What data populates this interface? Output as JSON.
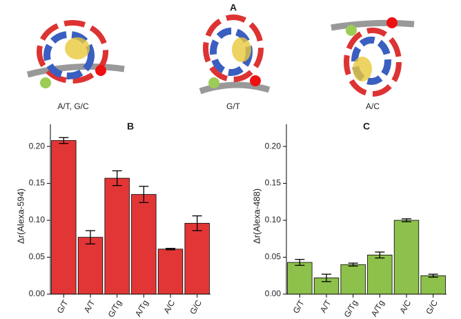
{
  "figure": {
    "panel_label": "A",
    "structures": [
      "A/T, G/C",
      "G/T",
      "A/C"
    ]
  },
  "chart_data": [
    {
      "type": "bar",
      "title": "B",
      "ylabel": "Δr(Alexa-594)",
      "categories": [
        "G/T",
        "A/T",
        "G/Tg",
        "A/Tg",
        "A/C",
        "G/C"
      ],
      "values": [
        0.208,
        0.077,
        0.157,
        0.135,
        0.061,
        0.096
      ],
      "errors": [
        0.004,
        0.009,
        0.01,
        0.011,
        0.001,
        0.01
      ],
      "color": "#e23636",
      "ylim": [
        0,
        0.23
      ],
      "yticks": [
        {
          "value": 0,
          "label": "0.00"
        },
        {
          "value": 0.05,
          "label": "0.05"
        },
        {
          "value": 0.1,
          "label": "0.10"
        },
        {
          "value": 0.15,
          "label": "0.15"
        },
        {
          "value": 0.2,
          "label": "0.20"
        }
      ]
    },
    {
      "type": "bar",
      "title": "C",
      "ylabel": "Δr(Alexa-488)",
      "categories": [
        "G/T",
        "A/T",
        "G/Tg",
        "A/Tg",
        "A/C",
        "G/C"
      ],
      "values": [
        0.043,
        0.022,
        0.04,
        0.053,
        0.1,
        0.025
      ],
      "errors": [
        0.004,
        0.005,
        0.002,
        0.004,
        0.002,
        0.002
      ],
      "color": "#8dc14b",
      "ylim": [
        0,
        0.23
      ],
      "yticks": [
        {
          "value": 0,
          "label": "0.00"
        },
        {
          "value": 0.05,
          "label": "0.05"
        },
        {
          "value": 0.1,
          "label": "0.10"
        },
        {
          "value": 0.15,
          "label": "0.15"
        },
        {
          "value": 0.2,
          "label": "0.20"
        }
      ]
    }
  ]
}
